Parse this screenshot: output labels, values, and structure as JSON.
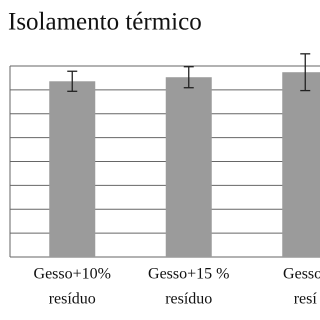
{
  "chart_data": {
    "type": "bar",
    "title": "Isolamento térmico",
    "categories": [
      [
        "Gesso+10%",
        "resíduo"
      ],
      [
        "Gesso+15 %",
        "resíduo"
      ],
      [
        "Gesso-",
        "resí"
      ]
    ],
    "values": [
      7.36,
      7.53,
      7.74
    ],
    "errors": [
      0.42,
      0.44,
      0.77
    ],
    "color": "#9b9b9b",
    "ylim": [
      0,
      8
    ],
    "yticks": [
      0,
      1,
      2,
      3,
      4,
      5,
      6,
      7,
      8
    ],
    "grid": true
  }
}
